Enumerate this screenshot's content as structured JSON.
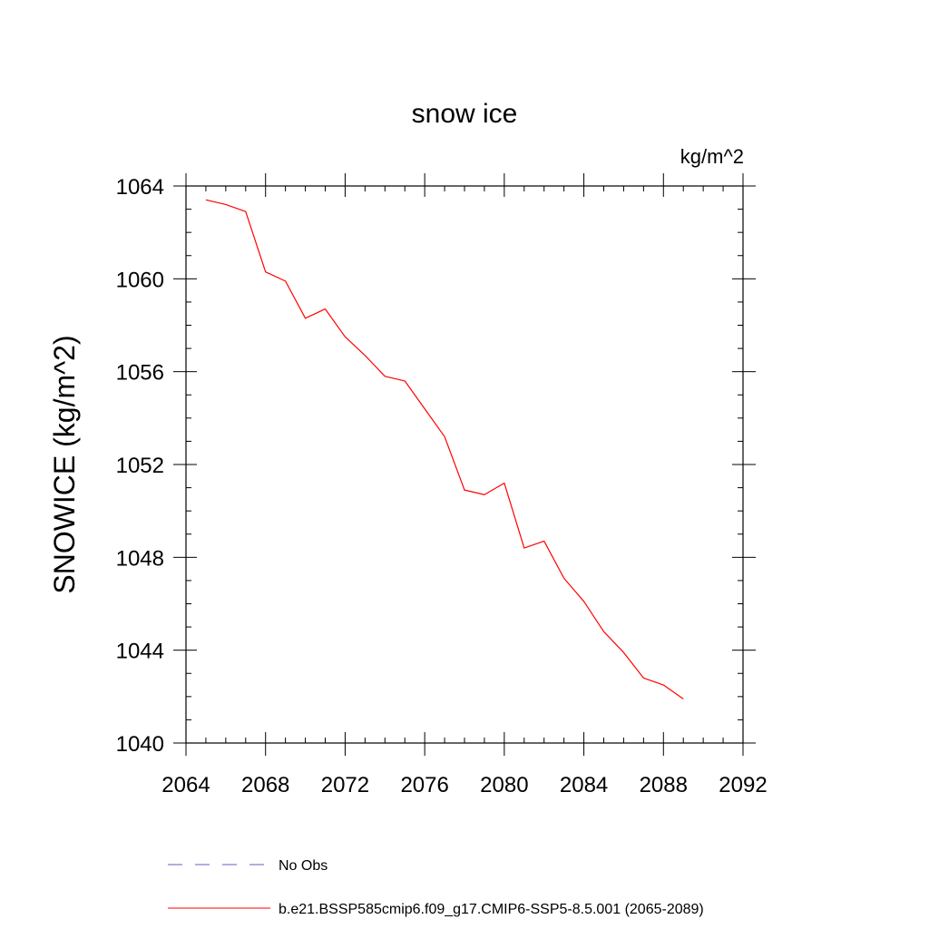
{
  "chart_data": {
    "type": "line",
    "title": "snow ice",
    "units": "kg/m^2",
    "ylabel": "SNOWICE  (kg/m^2)",
    "xlabel": "",
    "xlim": [
      2064,
      2092
    ],
    "ylim": [
      1040,
      1064
    ],
    "xticks": [
      "2064",
      "2068",
      "2072",
      "2076",
      "2080",
      "2084",
      "2088",
      "2092"
    ],
    "yticks": [
      "1040",
      "1044",
      "1048",
      "1052",
      "1056",
      "1060",
      "1064"
    ],
    "x": [
      2065,
      2066,
      2067,
      2068,
      2069,
      2070,
      2071,
      2072,
      2073,
      2074,
      2075,
      2076,
      2077,
      2078,
      2079,
      2080,
      2081,
      2082,
      2083,
      2084,
      2085,
      2086,
      2087,
      2088,
      2089
    ],
    "series": [
      {
        "name": "b.e21.BSSP585cmip6.f09_g17.CMIP6-SSP5-8.5.001 (2065-2089)",
        "color": "#ff0000",
        "values": [
          1063.4,
          1063.2,
          1062.9,
          1060.3,
          1059.9,
          1058.3,
          1058.7,
          1057.5,
          1056.7,
          1055.8,
          1055.6,
          1054.4,
          1053.2,
          1050.9,
          1050.7,
          1051.2,
          1048.4,
          1048.7,
          1047.1,
          1046.1,
          1044.8,
          1043.9,
          1042.8,
          1042.5,
          1041.9
        ]
      }
    ],
    "legend": {
      "placement": "bottom",
      "entries": [
        {
          "label": "No Obs",
          "color": "#6a5acd",
          "style": "dashed"
        },
        {
          "label": "b.e21.BSSP585cmip6.f09_g17.CMIP6-SSP5-8.5.001 (2065-2089)",
          "color": "#ff0000",
          "style": "solid"
        }
      ]
    },
    "grid": false
  }
}
